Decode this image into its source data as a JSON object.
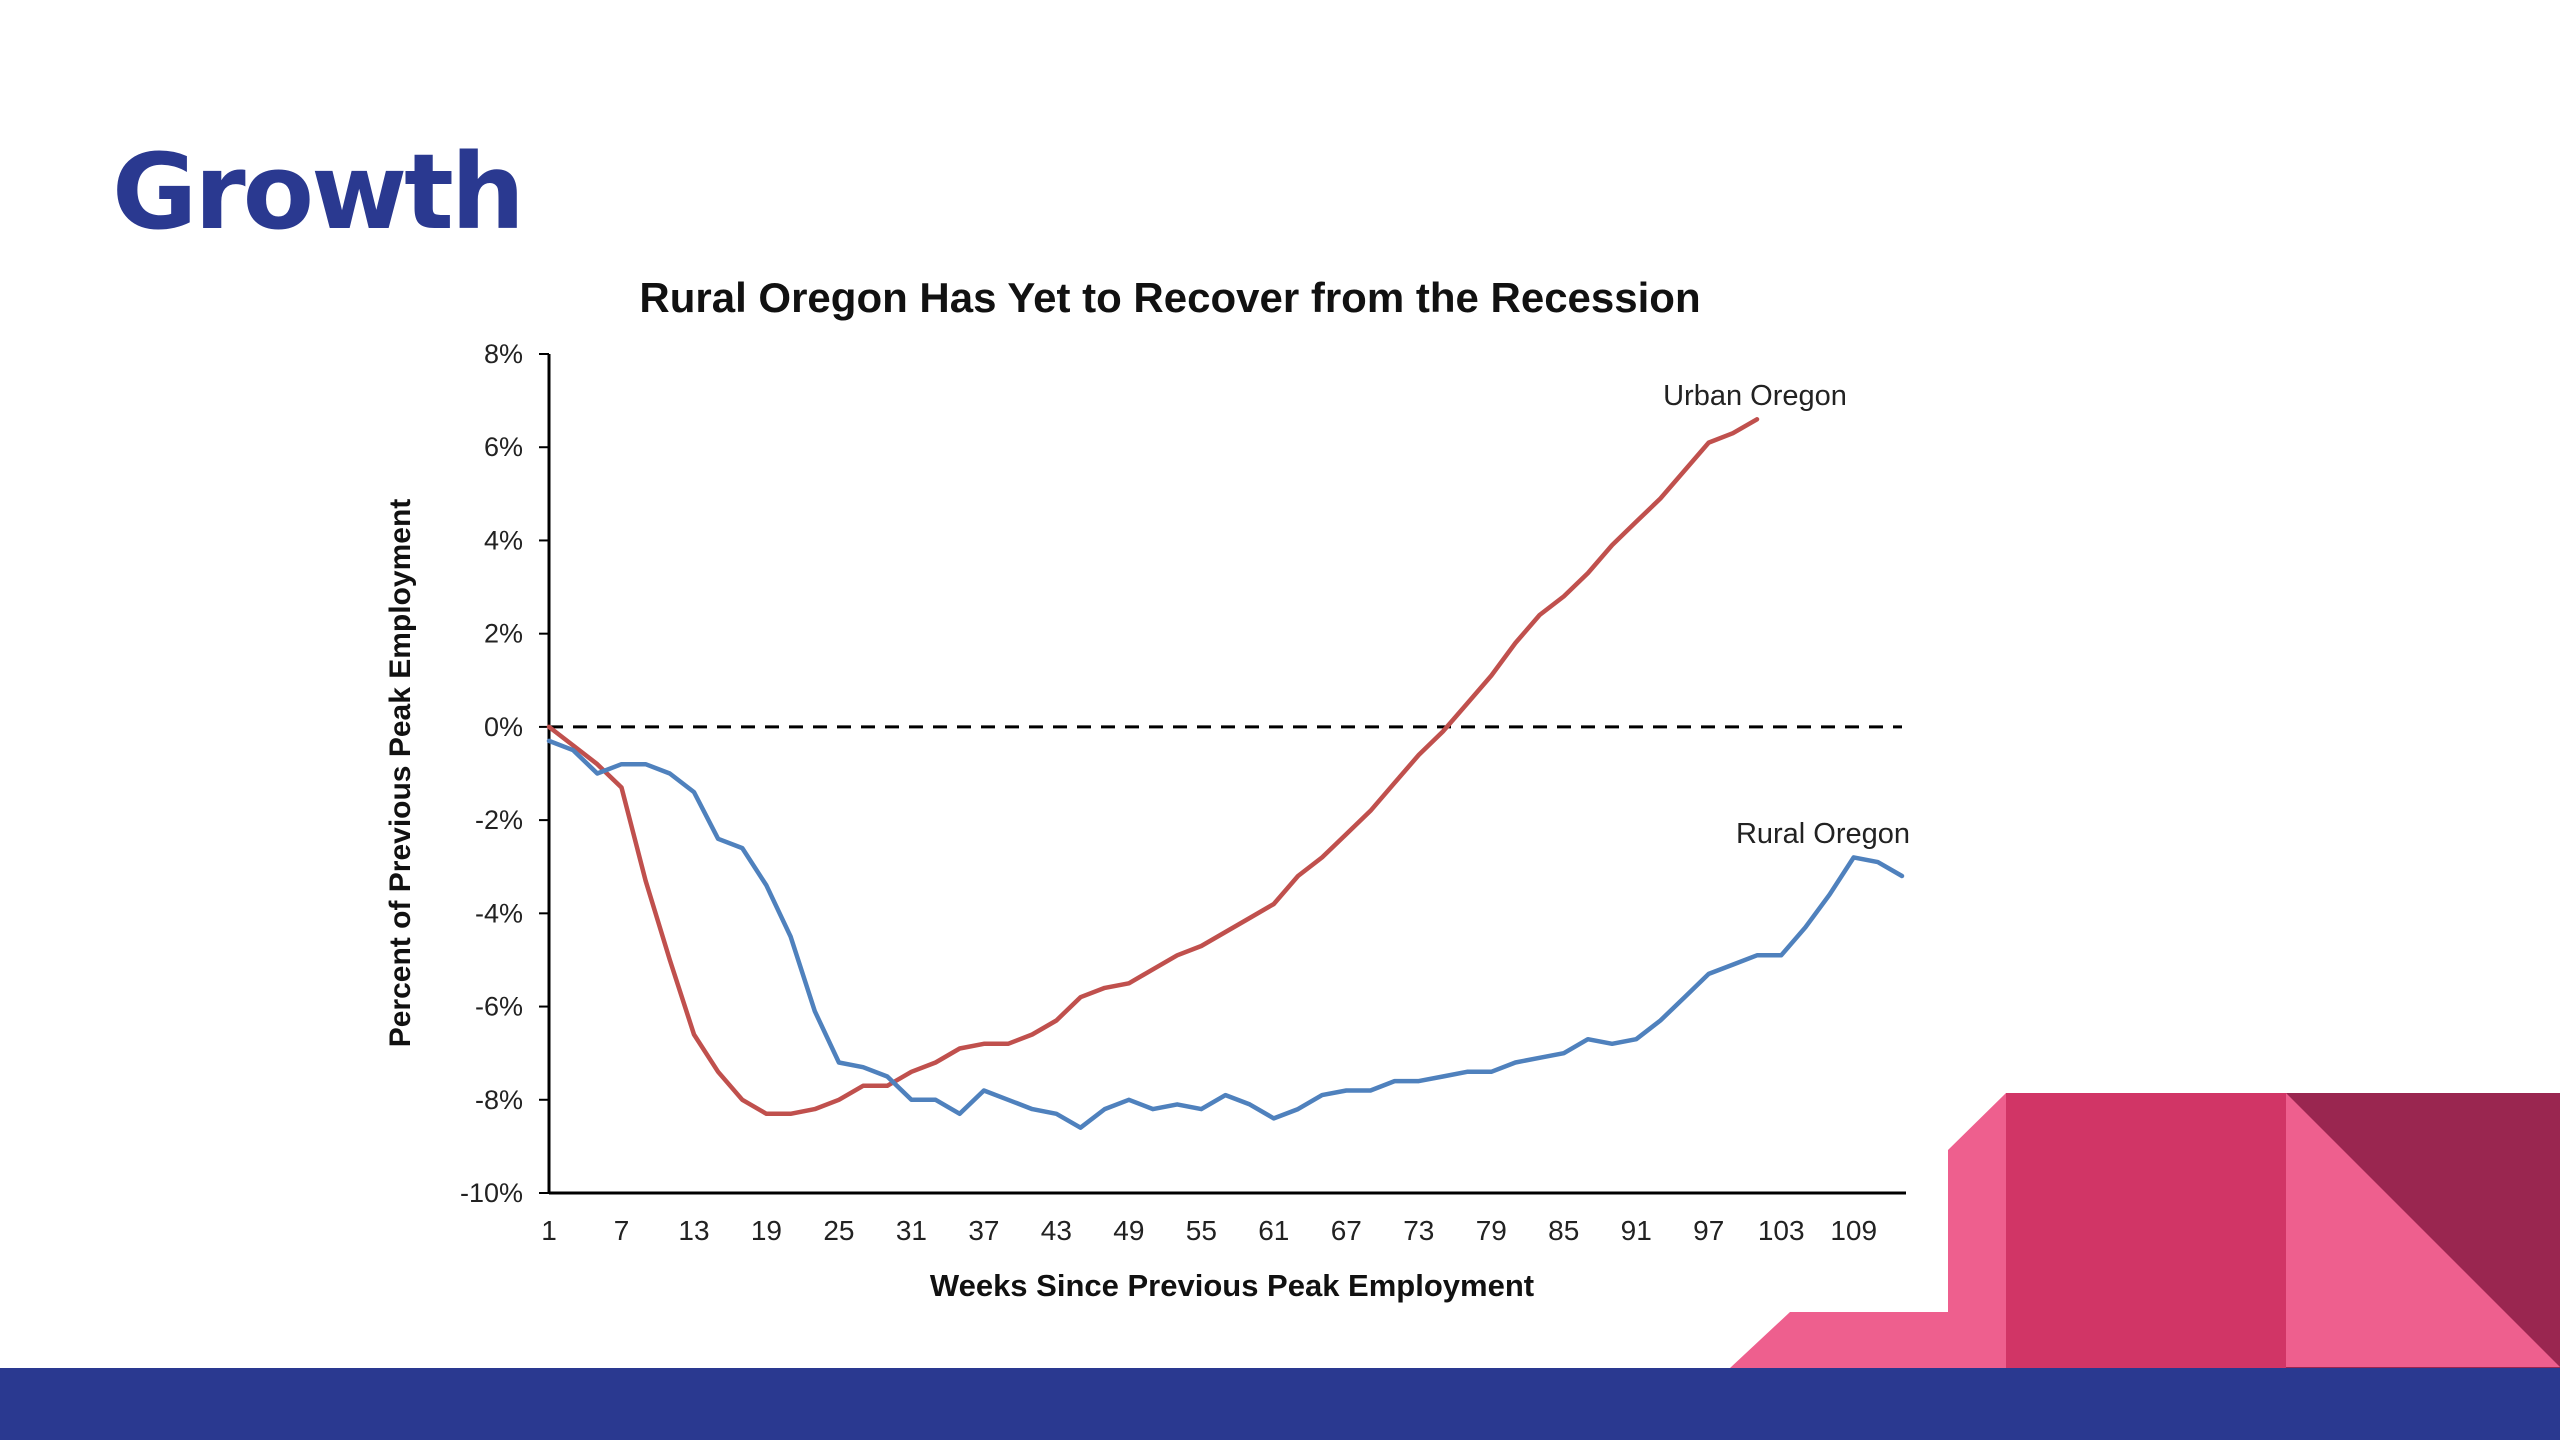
{
  "slide": {
    "title": "Growth"
  },
  "colors": {
    "title": "#2a3990",
    "footer": "#2a3990",
    "urban": "#c0504d",
    "rural": "#4f81bd",
    "pink_light": "#ee5f8e",
    "pink_mid": "#d13566",
    "pink_dark": "#9a2650"
  },
  "chart_data": {
    "type": "line",
    "title": "Rural Oregon Has Yet to Recover from the Recession",
    "xlabel": "Weeks Since Previous Peak Employment",
    "ylabel": "Percent of Previous Peak Employment",
    "xlim": [
      1,
      113
    ],
    "ylim": [
      -10,
      8
    ],
    "x_ticks": [
      1,
      7,
      13,
      19,
      25,
      31,
      37,
      43,
      49,
      55,
      61,
      67,
      73,
      79,
      85,
      91,
      97,
      103,
      109
    ],
    "y_ticks": [
      {
        "value": 8,
        "label": "8%"
      },
      {
        "value": 6,
        "label": "6%"
      },
      {
        "value": 4,
        "label": "4%"
      },
      {
        "value": 2,
        "label": "2%"
      },
      {
        "value": 0,
        "label": "0%"
      },
      {
        "value": -2,
        "label": "-2%"
      },
      {
        "value": -4,
        "label": "-4%"
      },
      {
        "value": -6,
        "label": "-6%"
      },
      {
        "value": -8,
        "label": "-8%"
      },
      {
        "value": -10,
        "label": "-10%"
      }
    ],
    "reference_line": 0,
    "grid": false,
    "series": [
      {
        "name": "Urban Oregon",
        "x": [
          1,
          3,
          5,
          7,
          9,
          11,
          13,
          15,
          17,
          19,
          21,
          23,
          25,
          27,
          29,
          31,
          33,
          35,
          37,
          39,
          41,
          43,
          45,
          47,
          49,
          51,
          53,
          55,
          57,
          59,
          61,
          63,
          65,
          67,
          69,
          71,
          73,
          75,
          77,
          79,
          81,
          83,
          85,
          87,
          89,
          91,
          93,
          95,
          97,
          99,
          101
        ],
        "values": [
          0.0,
          -0.4,
          -0.8,
          -1.3,
          -3.3,
          -5.0,
          -6.6,
          -7.4,
          -8.0,
          -8.3,
          -8.3,
          -8.2,
          -8.0,
          -7.7,
          -7.7,
          -7.4,
          -7.2,
          -6.9,
          -6.8,
          -6.8,
          -6.6,
          -6.3,
          -5.8,
          -5.6,
          -5.5,
          -5.2,
          -4.9,
          -4.7,
          -4.4,
          -4.1,
          -3.8,
          -3.2,
          -2.8,
          -2.3,
          -1.8,
          -1.2,
          -0.6,
          -0.1,
          0.5,
          1.1,
          1.8,
          2.4,
          2.8,
          3.3,
          3.9,
          4.4,
          4.9,
          5.5,
          6.1,
          6.3,
          6.6
        ]
      },
      {
        "name": "Rural Oregon",
        "x": [
          1,
          3,
          5,
          7,
          9,
          11,
          13,
          15,
          17,
          19,
          21,
          23,
          25,
          27,
          29,
          31,
          33,
          35,
          37,
          39,
          41,
          43,
          45,
          47,
          49,
          51,
          53,
          55,
          57,
          59,
          61,
          63,
          65,
          67,
          69,
          71,
          73,
          75,
          77,
          79,
          81,
          83,
          85,
          87,
          89,
          91,
          93,
          95,
          97,
          99,
          101,
          103,
          105,
          107,
          109,
          111,
          113
        ],
        "values": [
          -0.3,
          -0.5,
          -1.0,
          -0.8,
          -0.8,
          -1.0,
          -1.4,
          -2.4,
          -2.6,
          -3.4,
          -4.5,
          -6.1,
          -7.2,
          -7.3,
          -7.5,
          -8.0,
          -8.0,
          -8.3,
          -7.8,
          -8.0,
          -8.2,
          -8.3,
          -8.6,
          -8.2,
          -8.0,
          -8.2,
          -8.1,
          -8.2,
          -7.9,
          -8.1,
          -8.4,
          -8.2,
          -7.9,
          -7.8,
          -7.8,
          -7.6,
          -7.6,
          -7.5,
          -7.4,
          -7.4,
          -7.2,
          -7.1,
          -7.0,
          -6.7,
          -6.8,
          -6.7,
          -6.3,
          -5.8,
          -5.3,
          -5.1,
          -4.9,
          -4.9,
          -4.3,
          -3.6,
          -2.8,
          -2.9,
          -3.2
        ]
      }
    ]
  }
}
